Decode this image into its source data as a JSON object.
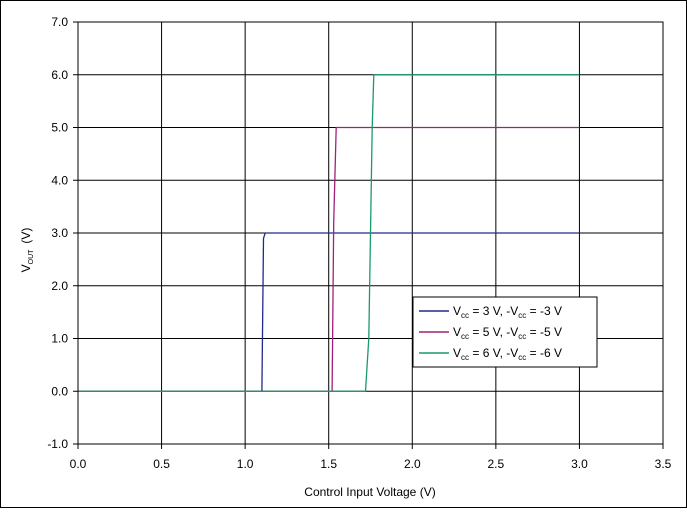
{
  "chart_data": {
    "type": "line",
    "xlabel": "Control Input Voltage (V)",
    "ylabel": {
      "main": "V",
      "sub": "OUT",
      "unit": "(V)"
    },
    "xlim": [
      0.0,
      3.5
    ],
    "ylim": [
      -1.0,
      7.0
    ],
    "x_ticks": [
      "0.0",
      "0.5",
      "1.0",
      "1.5",
      "2.0",
      "2.5",
      "3.0",
      "3.5"
    ],
    "y_ticks": [
      "-1.0",
      "0.0",
      "1.0",
      "2.0",
      "3.0",
      "4.0",
      "5.0",
      "6.0",
      "7.0"
    ],
    "grid": true,
    "legend_position": "bottom-right",
    "series": [
      {
        "label": {
          "pre": "V",
          "sub1": "cc",
          "mid": " = 3 V, -V",
          "sub2": "cc",
          "post": " = -3 V"
        },
        "color": "#1f2a8c",
        "points": [
          [
            0.0,
            0.0
          ],
          [
            1.1,
            0.0
          ],
          [
            1.11,
            2.9
          ],
          [
            1.12,
            3.0
          ],
          [
            3.0,
            3.0
          ]
        ]
      },
      {
        "label": {
          "pre": "V",
          "sub1": "cc",
          "mid": " = 5 V, -V",
          "sub2": "cc",
          "post": " = -5 V"
        },
        "color": "#a0207a",
        "points": [
          [
            0.0,
            0.0
          ],
          [
            1.52,
            0.0
          ],
          [
            1.53,
            3.2
          ],
          [
            1.545,
            5.0
          ],
          [
            3.0,
            5.0
          ]
        ]
      },
      {
        "label": {
          "pre": "V",
          "sub1": "cc",
          "mid": " = 6 V, -V",
          "sub2": "cc",
          "post": " = -6 V"
        },
        "color": "#1a9a6a",
        "points": [
          [
            0.0,
            0.0
          ],
          [
            1.72,
            0.0
          ],
          [
            1.74,
            1.0
          ],
          [
            1.75,
            3.0
          ],
          [
            1.76,
            5.0
          ],
          [
            1.77,
            6.0
          ],
          [
            3.0,
            6.0
          ]
        ]
      }
    ]
  }
}
